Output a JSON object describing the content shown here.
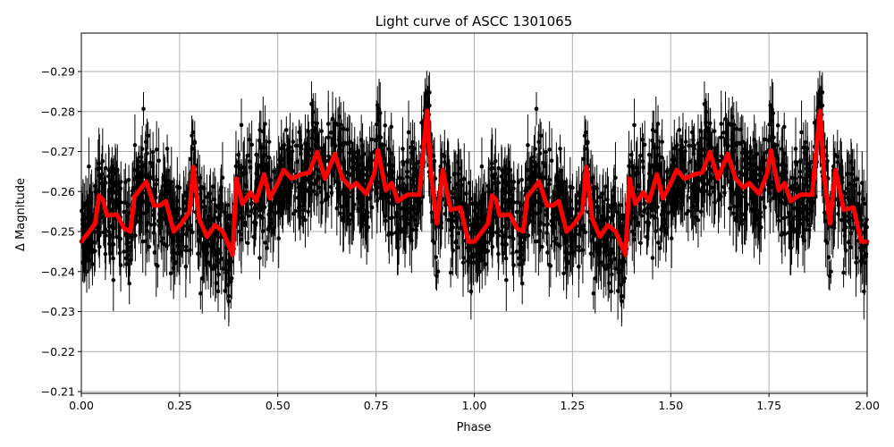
{
  "chart_data": {
    "type": "scatter",
    "title": "Light curve of ASCC 1301065",
    "xlabel": "Phase",
    "ylabel": "Δ Magnitude",
    "xlim": [
      0.0,
      2.0
    ],
    "ylim": [
      -0.2095,
      -0.299
    ],
    "y_inverted": true,
    "grid": true,
    "legend": null,
    "x_ticks": [
      "0.00",
      "0.25",
      "0.50",
      "0.75",
      "1.00",
      "1.25",
      "1.50",
      "1.75",
      "2.00"
    ],
    "x_tick_values": [
      0.0,
      0.25,
      0.5,
      0.75,
      1.0,
      1.25,
      1.5,
      1.75,
      2.0
    ],
    "y_ticks": [
      "−0.29",
      "−0.28",
      "−0.27",
      "−0.26",
      "−0.25",
      "−0.24",
      "−0.23",
      "−0.22",
      "−0.21"
    ],
    "y_tick_values": [
      -0.29,
      -0.28,
      -0.27,
      -0.26,
      -0.25,
      -0.24,
      -0.23,
      -0.22,
      -0.21
    ],
    "series": [
      {
        "name": "observations",
        "kind": "errorbar-scatter",
        "color": "#000000",
        "description": "Dense black points with vertical error bars spanning roughly -0.21 to -0.29 across phase 0-2 (phase-folded data, repeated for second cycle)",
        "mag_center": -0.256,
        "mag_spread": 0.02,
        "typical_error": 0.006
      },
      {
        "name": "binned mean",
        "kind": "line",
        "color": "#ff0000",
        "linewidth": 5,
        "period_repeat": true,
        "x": [
          0.0,
          0.02,
          0.035,
          0.045,
          0.055,
          0.065,
          0.09,
          0.11,
          0.125,
          0.135,
          0.165,
          0.185,
          0.2,
          0.215,
          0.235,
          0.255,
          0.275,
          0.285,
          0.3,
          0.32,
          0.34,
          0.36,
          0.385,
          0.395,
          0.41,
          0.43,
          0.445,
          0.465,
          0.48,
          0.5,
          0.515,
          0.535,
          0.56,
          0.58,
          0.6,
          0.62,
          0.645,
          0.665,
          0.685,
          0.7,
          0.725,
          0.745,
          0.755,
          0.775,
          0.79,
          0.805,
          0.83,
          0.86,
          0.88,
          0.89,
          0.905,
          0.92,
          0.94,
          0.965,
          0.985,
          1.0
        ],
        "y": [
          -0.2475,
          -0.25,
          -0.252,
          -0.259,
          -0.258,
          -0.254,
          -0.2543,
          -0.2507,
          -0.25,
          -0.2587,
          -0.2625,
          -0.2565,
          -0.2565,
          -0.2576,
          -0.25,
          -0.252,
          -0.255,
          -0.2661,
          -0.2531,
          -0.2487,
          -0.2516,
          -0.25,
          -0.2442,
          -0.2632,
          -0.2569,
          -0.2598,
          -0.2576,
          -0.2643,
          -0.2583,
          -0.2621,
          -0.2654,
          -0.2632,
          -0.2643,
          -0.2647,
          -0.2699,
          -0.2632,
          -0.2694,
          -0.2632,
          -0.261,
          -0.2621,
          -0.2594,
          -0.2643,
          -0.2703,
          -0.2603,
          -0.2621,
          -0.2576,
          -0.2592,
          -0.2592,
          -0.2802,
          -0.2643,
          -0.252,
          -0.2654,
          -0.2554,
          -0.256,
          -0.2475,
          -0.2475
        ]
      }
    ]
  },
  "colors": {
    "background": "#ffffff",
    "grid": "#b0b0b0",
    "points": "#000000",
    "fit_line": "#ff0000"
  }
}
